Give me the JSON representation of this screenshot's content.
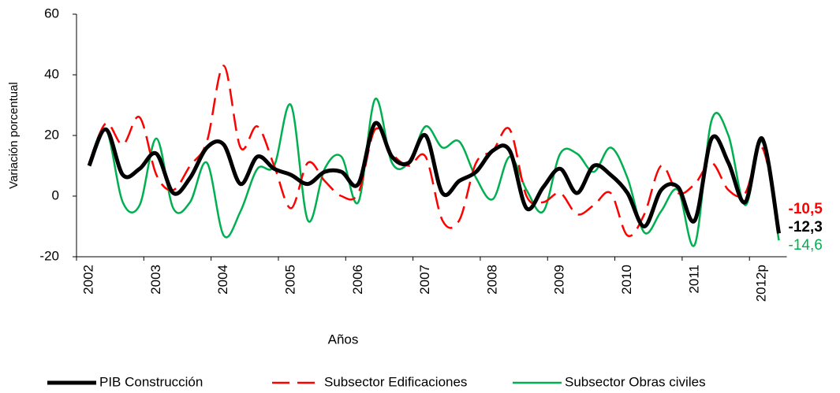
{
  "chart_data": {
    "type": "line",
    "x_label": "Años",
    "y_label": "Variación porcentual",
    "categories": [
      "2002",
      null,
      null,
      null,
      "2003",
      null,
      null,
      null,
      "2004",
      null,
      null,
      null,
      "2005",
      null,
      null,
      null,
      "2006",
      null,
      null,
      null,
      "2007",
      null,
      null,
      null,
      "2008",
      null,
      null,
      null,
      "2009",
      null,
      null,
      null,
      "2010",
      null,
      null,
      null,
      "2011",
      null,
      null,
      null,
      "2012p",
      null
    ],
    "ylim": [
      -20,
      60
    ],
    "yticks": [
      -20,
      0,
      20,
      40,
      60
    ],
    "grid": false,
    "legend": "bottom",
    "smooth": true,
    "series": [
      {
        "name": "PIB Construcción",
        "color": "#000000",
        "dash": false,
        "width": 5,
        "values": [
          10,
          22,
          7,
          9,
          14,
          1,
          6,
          16,
          17,
          4,
          13,
          9,
          7,
          4,
          8,
          8,
          4,
          24,
          13,
          11,
          20,
          1,
          5,
          8,
          15,
          15,
          -4,
          3,
          9,
          1,
          10,
          7,
          1,
          -10,
          2,
          3,
          -8,
          19,
          11,
          -2,
          19,
          -12.3
        ],
        "value_labels": [
          null,
          null,
          null,
          null,
          null,
          null,
          null,
          null,
          null,
          null,
          null,
          null,
          null,
          null,
          null,
          null,
          null,
          null,
          null,
          null,
          null,
          null,
          null,
          null,
          null,
          null,
          null,
          null,
          null,
          null,
          null,
          null,
          null,
          null,
          null,
          null,
          null,
          null,
          null,
          null,
          null,
          "-12,3"
        ]
      },
      {
        "name": "Subsector Edificaciones",
        "color": "#ff0000",
        "dash": true,
        "width": 2.5,
        "values": [
          11,
          24,
          17,
          26,
          7,
          2,
          10,
          18,
          43,
          16,
          23,
          10,
          -4,
          11,
          5,
          0,
          1,
          22,
          14,
          10,
          13,
          -8,
          -8,
          11,
          15,
          22,
          0,
          -2,
          1,
          -6,
          -3,
          1,
          -13,
          -6,
          10,
          1,
          4,
          11,
          2,
          1,
          16,
          -10.5
        ],
        "value_labels": [
          null,
          null,
          null,
          null,
          null,
          null,
          null,
          null,
          null,
          null,
          null,
          null,
          null,
          null,
          null,
          null,
          null,
          null,
          null,
          null,
          null,
          null,
          null,
          null,
          null,
          null,
          null,
          null,
          null,
          null,
          null,
          null,
          null,
          null,
          null,
          null,
          null,
          null,
          null,
          null,
          null,
          "-10,5"
        ]
      },
      {
        "name": "Subsector Obras civiles",
        "color": "#00b050",
        "dash": false,
        "width": 2.5,
        "values": [
          11,
          22,
          -2,
          -3,
          19,
          -4,
          -2,
          11,
          -13,
          -5,
          9,
          10,
          30,
          -8,
          9,
          13,
          -2,
          32,
          11,
          11,
          23,
          16,
          18,
          6,
          -1,
          13,
          2,
          -5,
          14,
          14,
          8,
          16,
          6,
          -12,
          -5,
          2,
          -16,
          25,
          20,
          -3,
          18,
          -14.6
        ],
        "value_labels": [
          null,
          null,
          null,
          null,
          null,
          null,
          null,
          null,
          null,
          null,
          null,
          null,
          null,
          null,
          null,
          null,
          null,
          null,
          null,
          null,
          null,
          null,
          null,
          null,
          null,
          null,
          null,
          null,
          null,
          null,
          null,
          null,
          null,
          null,
          null,
          null,
          null,
          null,
          null,
          null,
          null,
          "-14,6"
        ]
      }
    ]
  }
}
